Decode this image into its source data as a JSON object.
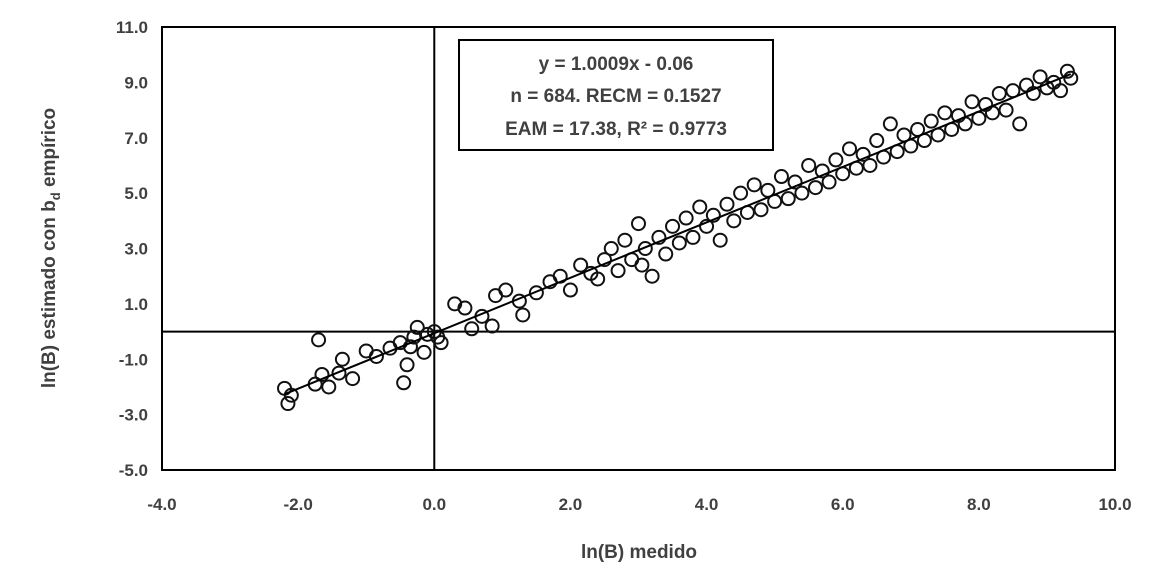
{
  "chart_data": {
    "type": "scatter",
    "xlabel": "ln(B) medido",
    "ylabel_main": "ln(B) estimado con b",
    "ylabel_sub": "d",
    "ylabel_tail": " empírico",
    "xlim": [
      -4.0,
      10.0
    ],
    "ylim": [
      -5.0,
      11.0
    ],
    "xticks": [
      "-4.0",
      "-2.0",
      "0.0",
      "2.0",
      "4.0",
      "6.0",
      "8.0",
      "10.0"
    ],
    "yticks": [
      "11.0",
      "9.0",
      "7.0",
      "5.0",
      "3.0",
      "1.0",
      "-1.0",
      "-3.0",
      "-5.0"
    ],
    "reference_lines": {
      "x": 0,
      "y": 0
    },
    "annotation": {
      "line1": "y = 1.0009x - 0.06",
      "line2": "n = 684. RECM = 0.1527",
      "line3": "EAM = 17.38, R² = 0.9773"
    },
    "fit": {
      "slope": 1.0009,
      "intercept": -0.06
    },
    "points": [
      [
        -2.2,
        -2.05
      ],
      [
        -2.15,
        -2.6
      ],
      [
        -2.1,
        -2.3
      ],
      [
        -1.75,
        -1.9
      ],
      [
        -1.7,
        -0.3
      ],
      [
        -1.65,
        -1.55
      ],
      [
        -1.55,
        -2.0
      ],
      [
        -1.4,
        -1.5
      ],
      [
        -1.35,
        -1.0
      ],
      [
        -1.2,
        -1.7
      ],
      [
        -1.0,
        -0.7
      ],
      [
        -0.85,
        -0.9
      ],
      [
        -0.65,
        -0.6
      ],
      [
        -0.5,
        -0.4
      ],
      [
        -0.45,
        -1.85
      ],
      [
        -0.4,
        -1.2
      ],
      [
        -0.35,
        -0.55
      ],
      [
        -0.3,
        -0.2
      ],
      [
        -0.25,
        0.15
      ],
      [
        -0.15,
        -0.75
      ],
      [
        -0.1,
        -0.1
      ],
      [
        0.0,
        0.0
      ],
      [
        0.05,
        -0.2
      ],
      [
        0.1,
        -0.4
      ],
      [
        0.3,
        1.0
      ],
      [
        0.45,
        0.85
      ],
      [
        0.55,
        0.1
      ],
      [
        0.7,
        0.55
      ],
      [
        0.85,
        0.2
      ],
      [
        0.9,
        1.3
      ],
      [
        1.05,
        1.5
      ],
      [
        1.25,
        1.1
      ],
      [
        1.3,
        0.6
      ],
      [
        1.5,
        1.4
      ],
      [
        1.7,
        1.8
      ],
      [
        1.85,
        2.0
      ],
      [
        2.0,
        1.5
      ],
      [
        2.15,
        2.4
      ],
      [
        2.3,
        2.1
      ],
      [
        2.4,
        1.9
      ],
      [
        2.5,
        2.6
      ],
      [
        2.6,
        3.0
      ],
      [
        2.7,
        2.2
      ],
      [
        2.8,
        3.3
      ],
      [
        2.9,
        2.6
      ],
      [
        3.0,
        3.9
      ],
      [
        3.05,
        2.4
      ],
      [
        3.1,
        3.0
      ],
      [
        3.2,
        2.0
      ],
      [
        3.3,
        3.4
      ],
      [
        3.4,
        2.8
      ],
      [
        3.5,
        3.8
      ],
      [
        3.6,
        3.2
      ],
      [
        3.7,
        4.1
      ],
      [
        3.8,
        3.4
      ],
      [
        3.9,
        4.5
      ],
      [
        4.0,
        3.8
      ],
      [
        4.1,
        4.2
      ],
      [
        4.2,
        3.3
      ],
      [
        4.3,
        4.6
      ],
      [
        4.4,
        4.0
      ],
      [
        4.5,
        5.0
      ],
      [
        4.6,
        4.3
      ],
      [
        4.7,
        5.3
      ],
      [
        4.8,
        4.4
      ],
      [
        4.9,
        5.1
      ],
      [
        5.0,
        4.7
      ],
      [
        5.1,
        5.6
      ],
      [
        5.2,
        4.8
      ],
      [
        5.3,
        5.4
      ],
      [
        5.4,
        5.0
      ],
      [
        5.5,
        6.0
      ],
      [
        5.6,
        5.2
      ],
      [
        5.7,
        5.8
      ],
      [
        5.8,
        5.4
      ],
      [
        5.9,
        6.2
      ],
      [
        6.0,
        5.7
      ],
      [
        6.1,
        6.6
      ],
      [
        6.2,
        5.9
      ],
      [
        6.3,
        6.4
      ],
      [
        6.4,
        6.0
      ],
      [
        6.5,
        6.9
      ],
      [
        6.6,
        6.3
      ],
      [
        6.7,
        7.5
      ],
      [
        6.8,
        6.5
      ],
      [
        6.9,
        7.1
      ],
      [
        7.0,
        6.7
      ],
      [
        7.1,
        7.3
      ],
      [
        7.2,
        6.9
      ],
      [
        7.3,
        7.6
      ],
      [
        7.4,
        7.1
      ],
      [
        7.5,
        7.9
      ],
      [
        7.6,
        7.3
      ],
      [
        7.7,
        7.8
      ],
      [
        7.8,
        7.5
      ],
      [
        7.9,
        8.3
      ],
      [
        8.0,
        7.7
      ],
      [
        8.1,
        8.2
      ],
      [
        8.2,
        7.9
      ],
      [
        8.3,
        8.6
      ],
      [
        8.4,
        8.0
      ],
      [
        8.5,
        8.7
      ],
      [
        8.6,
        7.5
      ],
      [
        8.7,
        8.9
      ],
      [
        8.8,
        8.6
      ],
      [
        8.9,
        9.2
      ],
      [
        9.0,
        8.8
      ],
      [
        9.1,
        9.0
      ],
      [
        9.2,
        8.7
      ],
      [
        9.3,
        9.4
      ],
      [
        9.35,
        9.15
      ]
    ]
  }
}
